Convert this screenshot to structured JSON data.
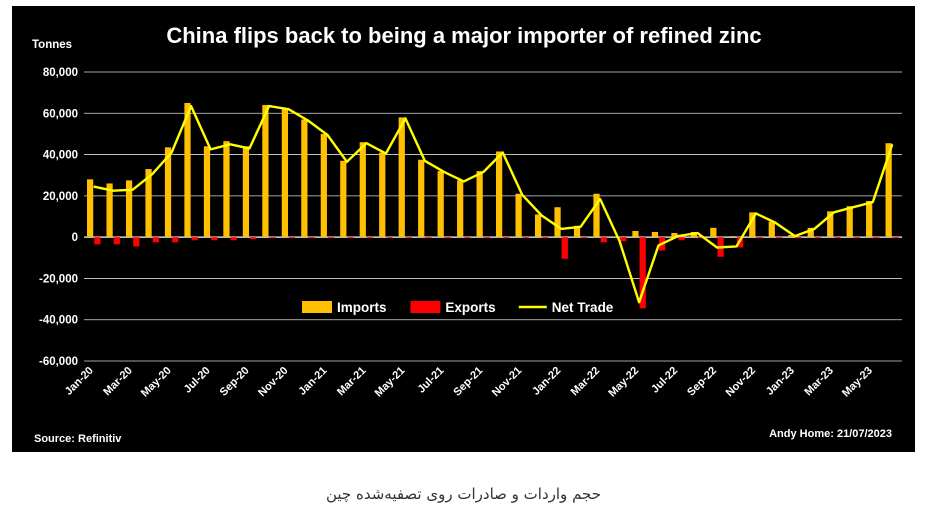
{
  "chart_data": {
    "type": "bar",
    "title": "China flips back to being a major importer of refined zinc",
    "ylabel": "Tonnes",
    "ylim": [
      -60000,
      80000
    ],
    "yticks": [
      80000,
      60000,
      40000,
      20000,
      0,
      -20000,
      -40000,
      -60000
    ],
    "ytick_labels": [
      "80,000",
      "60,000",
      "40,000",
      "20,000",
      "0",
      "-20,000",
      "-40,000",
      "-60,000"
    ],
    "grid": true,
    "legend_position": "bottom-center",
    "source": "Source: Refinitiv",
    "credit": "Andy Home: 21/07/2023",
    "categories": [
      "Jan-20",
      "Feb-20",
      "Mar-20",
      "Apr-20",
      "May-20",
      "Jun-20",
      "Jul-20",
      "Aug-20",
      "Sep-20",
      "Oct-20",
      "Nov-20",
      "Dec-20",
      "Jan-21",
      "Feb-21",
      "Mar-21",
      "Apr-21",
      "May-21",
      "Jun-21",
      "Jul-21",
      "Aug-21",
      "Sep-21",
      "Oct-21",
      "Nov-21",
      "Dec-21",
      "Jan-22",
      "Feb-22",
      "Mar-22",
      "Apr-22",
      "May-22",
      "Jun-22",
      "Jul-22",
      "Aug-22",
      "Sep-22",
      "Oct-22",
      "Nov-22",
      "Dec-22",
      "Jan-23",
      "Feb-23",
      "Mar-23",
      "Apr-23",
      "May-23",
      "Jun-23"
    ],
    "x_tick_labels": [
      "Jan-20",
      "Mar-20",
      "May-20",
      "Jul-20",
      "Sep-20",
      "Nov-20",
      "Jan-21",
      "Mar-21",
      "May-21",
      "Jul-21",
      "Sep-21",
      "Nov-21",
      "Jan-22",
      "Mar-22",
      "May-22",
      "Jul-22",
      "Sep-22",
      "Nov-22",
      "Jan-23",
      "Mar-23",
      "May-23"
    ],
    "series": [
      {
        "name": "Imports",
        "type": "bar",
        "color": "#FFC000",
        "values": [
          28000,
          26000,
          27500,
          33000,
          43500,
          65000,
          44000,
          46500,
          44000,
          64000,
          62500,
          57000,
          50000,
          37000,
          46000,
          41000,
          58000,
          37500,
          32000,
          27500,
          32000,
          41500,
          21000,
          11000,
          14500,
          5500,
          21000,
          0,
          3000,
          2500,
          2000,
          2500,
          4500,
          500,
          12000,
          7500,
          1000,
          4500,
          12500,
          15000,
          17500,
          45500
        ]
      },
      {
        "name": "Exports",
        "type": "bar",
        "color": "#FF0000",
        "values": [
          -3500,
          -3500,
          -4500,
          -2500,
          -2500,
          -1500,
          -1500,
          -1500,
          -1000,
          -500,
          -500,
          -500,
          -500,
          -500,
          -500,
          -500,
          -500,
          -500,
          -500,
          -500,
          -500,
          -500,
          -500,
          -500,
          -10500,
          -500,
          -2500,
          -2000,
          -34500,
          -6500,
          -1500,
          -500,
          -9500,
          -5000,
          -500,
          -500,
          -500,
          -500,
          -500,
          -500,
          -500,
          -500
        ]
      },
      {
        "name": "Net Trade",
        "type": "line",
        "color": "#FFFF00",
        "values": [
          24500,
          22500,
          23000,
          30500,
          41000,
          63500,
          42500,
          45000,
          43000,
          63500,
          62000,
          56500,
          49500,
          36500,
          45500,
          40500,
          57500,
          37000,
          31500,
          27000,
          31500,
          41000,
          20500,
          10500,
          4000,
          5000,
          18500,
          -2000,
          -31500,
          -4000,
          500,
          2000,
          -5000,
          -4500,
          11500,
          7000,
          500,
          4000,
          12000,
          14500,
          17000,
          45000
        ]
      }
    ]
  },
  "caption": "حجم واردات و صادرات روی تصفیه‌شده چین"
}
